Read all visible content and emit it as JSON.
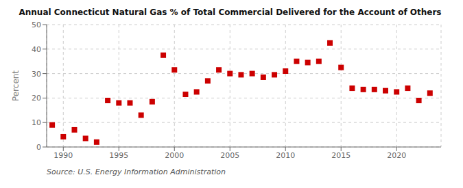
{
  "chart_data": {
    "type": "scatter",
    "title": "Annual Connecticut Natural Gas % of Total Commercial Delivered for the Account of Others",
    "ylabel": "Percent",
    "source": "Source: U.S. Energy Information Administration",
    "x": [
      1989,
      1990,
      1991,
      1992,
      1993,
      1994,
      1995,
      1996,
      1997,
      1998,
      1999,
      2000,
      2001,
      2002,
      2003,
      2004,
      2005,
      2006,
      2007,
      2008,
      2009,
      2010,
      2011,
      2012,
      2013,
      2014,
      2015,
      2016,
      2017,
      2018,
      2019,
      2020,
      2021,
      2022,
      2023
    ],
    "values": [
      9.0,
      4.2,
      7.0,
      3.5,
      2.0,
      19.0,
      18.0,
      18.0,
      13.0,
      18.5,
      37.5,
      31.5,
      21.5,
      22.5,
      27.0,
      31.5,
      30.0,
      29.5,
      30.0,
      28.5,
      29.5,
      31.0,
      35.0,
      34.5,
      35.0,
      42.5,
      32.5,
      24.0,
      23.5,
      23.5,
      23.0,
      22.5,
      24.0,
      19.0,
      22.0
    ],
    "color": "#cc0000",
    "marker": "square",
    "xlim": [
      1988.5,
      2024
    ],
    "xticks": [
      1990,
      1995,
      2000,
      2005,
      2010,
      2015,
      2020
    ],
    "ylim": [
      0,
      50
    ],
    "yticks": [
      0,
      10,
      20,
      30,
      40,
      50
    ],
    "grid": true
  }
}
